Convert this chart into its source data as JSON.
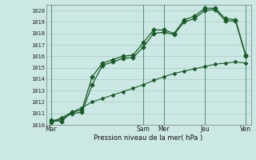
{
  "xlabel": "Pression niveau de la mer( hPa )",
  "ylim": [
    1010,
    1020.5
  ],
  "yticks": [
    1010,
    1011,
    1012,
    1013,
    1014,
    1015,
    1016,
    1017,
    1018,
    1019,
    1020
  ],
  "xtick_labels": [
    "Mar",
    "Sam",
    "Mer",
    "Jeu",
    "Ven"
  ],
  "xtick_positions": [
    0,
    9,
    11,
    15,
    19
  ],
  "background_color": "#cce8e4",
  "grid_color": "#aaccca",
  "line_color": "#1a5c28",
  "series1_x": [
    0,
    1,
    2,
    3,
    4,
    5,
    6,
    7,
    8,
    9,
    10,
    11,
    12,
    13,
    14,
    15,
    16,
    17,
    18,
    19
  ],
  "series1_y": [
    1010.4,
    1010.3,
    1011.1,
    1011.3,
    1014.2,
    1015.4,
    1015.7,
    1016.0,
    1016.1,
    1017.2,
    1018.3,
    1018.3,
    1018.0,
    1019.2,
    1019.5,
    1020.2,
    1020.2,
    1019.3,
    1019.2,
    1016.1
  ],
  "series2_x": [
    0,
    1,
    2,
    3,
    4,
    5,
    6,
    7,
    8,
    9,
    10,
    11,
    12,
    13,
    14,
    15,
    16,
    17,
    18,
    19
  ],
  "series2_y": [
    1010.2,
    1010.5,
    1011.0,
    1011.1,
    1013.5,
    1015.2,
    1015.5,
    1015.8,
    1015.9,
    1016.8,
    1018.0,
    1018.1,
    1017.9,
    1019.0,
    1019.3,
    1020.0,
    1020.1,
    1019.1,
    1019.1,
    1016.0
  ],
  "series3_x": [
    0,
    1,
    2,
    3,
    4,
    5,
    6,
    7,
    8,
    9,
    10,
    11,
    12,
    13,
    14,
    15,
    16,
    17,
    18,
    19
  ],
  "series3_y": [
    1010.3,
    1010.6,
    1011.1,
    1011.5,
    1012.0,
    1012.3,
    1012.6,
    1012.9,
    1013.2,
    1013.5,
    1013.9,
    1014.2,
    1014.5,
    1014.7,
    1014.9,
    1015.1,
    1015.3,
    1015.4,
    1015.5,
    1015.4
  ],
  "vlines_x": [
    0,
    9,
    11,
    15,
    19
  ],
  "total_points": 20,
  "xlim": [
    -0.5,
    19.5
  ]
}
